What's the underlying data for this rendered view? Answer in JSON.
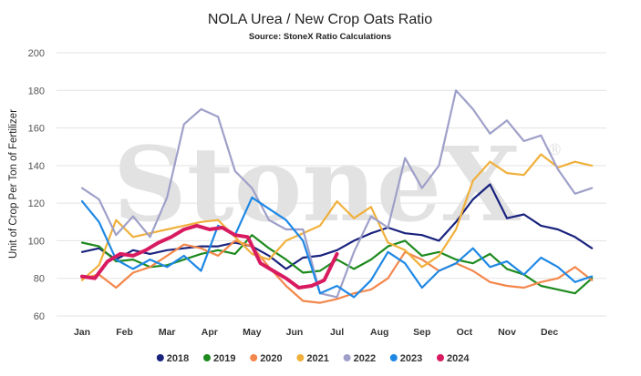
{
  "chart_data": {
    "type": "line",
    "title": "NOLA Urea / New Crop Oats Ratio",
    "subtitle": "Source: StoneX Ratio Calculations",
    "ylabel": "Unit of Crop Per Ton of Fertilizer",
    "xlabel": "",
    "ylim": [
      60,
      200
    ],
    "yticks": [
      60,
      80,
      100,
      120,
      140,
      160,
      180,
      200
    ],
    "xlim": [
      0,
      12.5
    ],
    "categories": [
      "Jan",
      "Feb",
      "Mar",
      "Apr",
      "May",
      "Jun",
      "Jul",
      "Aug",
      "Sep",
      "Oct",
      "Nov",
      "Dec"
    ],
    "grid": true,
    "legend_position": "bottom",
    "watermark": "StoneX",
    "series": [
      {
        "name": "2018",
        "color": "#1a237e",
        "width": 2.2,
        "x": [
          0,
          0.4,
          0.8,
          1.2,
          1.6,
          2,
          2.4,
          2.8,
          3.2,
          3.6,
          4,
          4.4,
          4.8,
          5.2,
          5.6,
          6,
          6.4,
          6.8,
          7.2,
          7.6,
          8,
          8.4,
          8.8,
          9.2,
          9.6,
          10,
          10.4,
          10.8,
          11.2,
          11.6,
          12
        ],
        "y": [
          94,
          96,
          90,
          95,
          93,
          95,
          96,
          97,
          97,
          99,
          97,
          92,
          85,
          91,
          92,
          95,
          100,
          104,
          107,
          104,
          103,
          100,
          110,
          122,
          130,
          112,
          114,
          108,
          106,
          102,
          96
        ]
      },
      {
        "name": "2019",
        "color": "#1e8a1e",
        "width": 2.2,
        "x": [
          0,
          0.4,
          0.8,
          1.2,
          1.6,
          2,
          2.4,
          2.8,
          3.2,
          3.6,
          4,
          4.4,
          4.8,
          5.2,
          5.6,
          6,
          6.4,
          6.8,
          7.2,
          7.6,
          8,
          8.4,
          8.8,
          9.2,
          9.6,
          10,
          10.4,
          10.8,
          11.2,
          11.6,
          12
        ],
        "y": [
          99,
          97,
          89,
          90,
          86,
          87,
          90,
          93,
          95,
          93,
          103,
          96,
          90,
          83,
          84,
          90,
          85,
          90,
          97,
          100,
          92,
          94,
          90,
          88,
          93,
          85,
          82,
          76,
          74,
          72,
          80
        ]
      },
      {
        "name": "2020",
        "color": "#f4874b",
        "width": 2.2,
        "x": [
          0,
          0.4,
          0.8,
          1.2,
          1.6,
          2,
          2.4,
          2.8,
          3.2,
          3.6,
          4,
          4.4,
          4.8,
          5.2,
          5.6,
          6,
          6.4,
          6.8,
          7.2,
          7.6,
          8,
          8.4,
          8.8,
          9.2,
          9.6,
          10,
          10.4,
          10.8,
          11.2,
          11.6,
          12
        ],
        "y": [
          80,
          82,
          75,
          83,
          86,
          92,
          98,
          96,
          92,
          100,
          97,
          86,
          76,
          68,
          67,
          69,
          72,
          74,
          80,
          94,
          90,
          84,
          88,
          84,
          78,
          76,
          75,
          78,
          80,
          86,
          79
        ]
      },
      {
        "name": "2021",
        "color": "#f0b03c",
        "width": 2.2,
        "x": [
          0,
          0.4,
          0.8,
          1.2,
          1.6,
          2,
          2.4,
          2.8,
          3.2,
          3.6,
          4,
          4.4,
          4.8,
          5.2,
          5.6,
          6,
          6.4,
          6.8,
          7.2,
          7.6,
          8,
          8.4,
          8.8,
          9.2,
          9.6,
          10,
          10.4,
          10.8,
          11.2,
          11.6,
          12
        ],
        "y": [
          79,
          87,
          111,
          102,
          104,
          106,
          108,
          110,
          111,
          102,
          93,
          90,
          100,
          104,
          108,
          121,
          112,
          118,
          99,
          95,
          86,
          92,
          106,
          132,
          142,
          136,
          135,
          146,
          139,
          142,
          140
        ]
      },
      {
        "name": "2022",
        "color": "#9fa0c9",
        "width": 2.2,
        "x": [
          0,
          0.4,
          0.8,
          1.2,
          1.6,
          2,
          2.4,
          2.8,
          3.2,
          3.6,
          4,
          4.4,
          4.8,
          5.2,
          5.6,
          6,
          6.4,
          6.8,
          7.2,
          7.6,
          8,
          8.4,
          8.8,
          9.2,
          9.6,
          10,
          10.4,
          10.8,
          11.2,
          11.6,
          12
        ],
        "y": [
          128,
          122,
          103,
          113,
          102,
          123,
          162,
          170,
          166,
          137,
          128,
          111,
          106,
          106,
          72,
          70,
          94,
          113,
          107,
          144,
          128,
          140,
          180,
          170,
          157,
          164,
          153,
          156,
          138,
          125,
          128
        ]
      },
      {
        "name": "2023",
        "color": "#1e88e5",
        "width": 2.2,
        "x": [
          0,
          0.4,
          0.8,
          1.2,
          1.6,
          2,
          2.4,
          2.8,
          3.2,
          3.6,
          4,
          4.4,
          4.8,
          5.2,
          5.6,
          6,
          6.4,
          6.8,
          7.2,
          7.6,
          8,
          8.4,
          8.8,
          9.2,
          9.6,
          10,
          10.4,
          10.8,
          11.2,
          11.6,
          12
        ],
        "y": [
          121,
          110,
          90,
          85,
          90,
          86,
          92,
          84,
          108,
          103,
          123,
          117,
          111,
          100,
          72,
          76,
          70,
          79,
          94,
          88,
          75,
          84,
          88,
          96,
          86,
          89,
          82,
          91,
          86,
          78,
          81
        ]
      },
      {
        "name": "2024",
        "color": "#d81b60",
        "width": 4,
        "x": [
          0,
          0.3,
          0.6,
          0.9,
          1.2,
          1.5,
          1.8,
          2.1,
          2.4,
          2.7,
          3.0,
          3.3,
          3.6,
          3.9,
          4.2,
          4.5,
          4.8,
          5.1,
          5.4,
          5.7,
          6.0
        ],
        "y": [
          81,
          80,
          89,
          93,
          92,
          95,
          99,
          102,
          106,
          108,
          106,
          107,
          103,
          102,
          88,
          84,
          80,
          75,
          76,
          79,
          93
        ]
      }
    ]
  }
}
